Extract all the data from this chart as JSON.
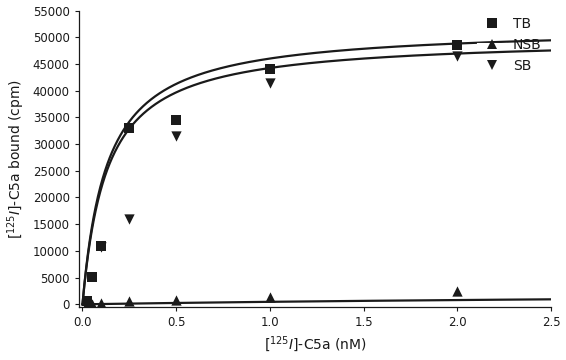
{
  "title": "",
  "xlabel": "$[^{125}I]$-C5a (nM)",
  "ylabel": "$[^{125}I]$-C5a bound (cpm)",
  "xlim": [
    -0.02,
    2.5
  ],
  "ylim": [
    -500,
    55000
  ],
  "yticks": [
    0,
    5000,
    10000,
    15000,
    20000,
    25000,
    30000,
    35000,
    40000,
    45000,
    50000,
    55000
  ],
  "xticks": [
    0.0,
    0.5,
    1.0,
    1.5,
    2.0,
    2.5
  ],
  "TB_x": [
    0.025,
    0.05,
    0.1,
    0.25,
    0.5,
    1.0,
    2.0
  ],
  "TB_y": [
    600,
    5200,
    11000,
    33000,
    34500,
    44000,
    48500
  ],
  "NSB_x": [
    0.025,
    0.05,
    0.1,
    0.25,
    0.5,
    1.0,
    2.0
  ],
  "NSB_y": [
    80,
    150,
    300,
    550,
    850,
    1400,
    2400
  ],
  "SB_x": [
    0.1,
    0.25,
    0.5,
    1.0,
    2.0
  ],
  "SB_y": [
    10700,
    16000,
    31500,
    41500,
    46500
  ],
  "TB_Bmax": 52000,
  "TB_Kd": 0.13,
  "NSB_Bmax": 2800,
  "NSB_Kd": 5.0,
  "SB_Bmax": 50000,
  "SB_Kd": 0.13,
  "color": "#1a1a1a",
  "marker_TB": "s",
  "marker_NSB": "^",
  "marker_SB": "v",
  "marker_size": 55,
  "line_width": 1.6,
  "legend_labels": [
    "TB",
    "NSB",
    "SB"
  ],
  "legend_marker_size": 7
}
